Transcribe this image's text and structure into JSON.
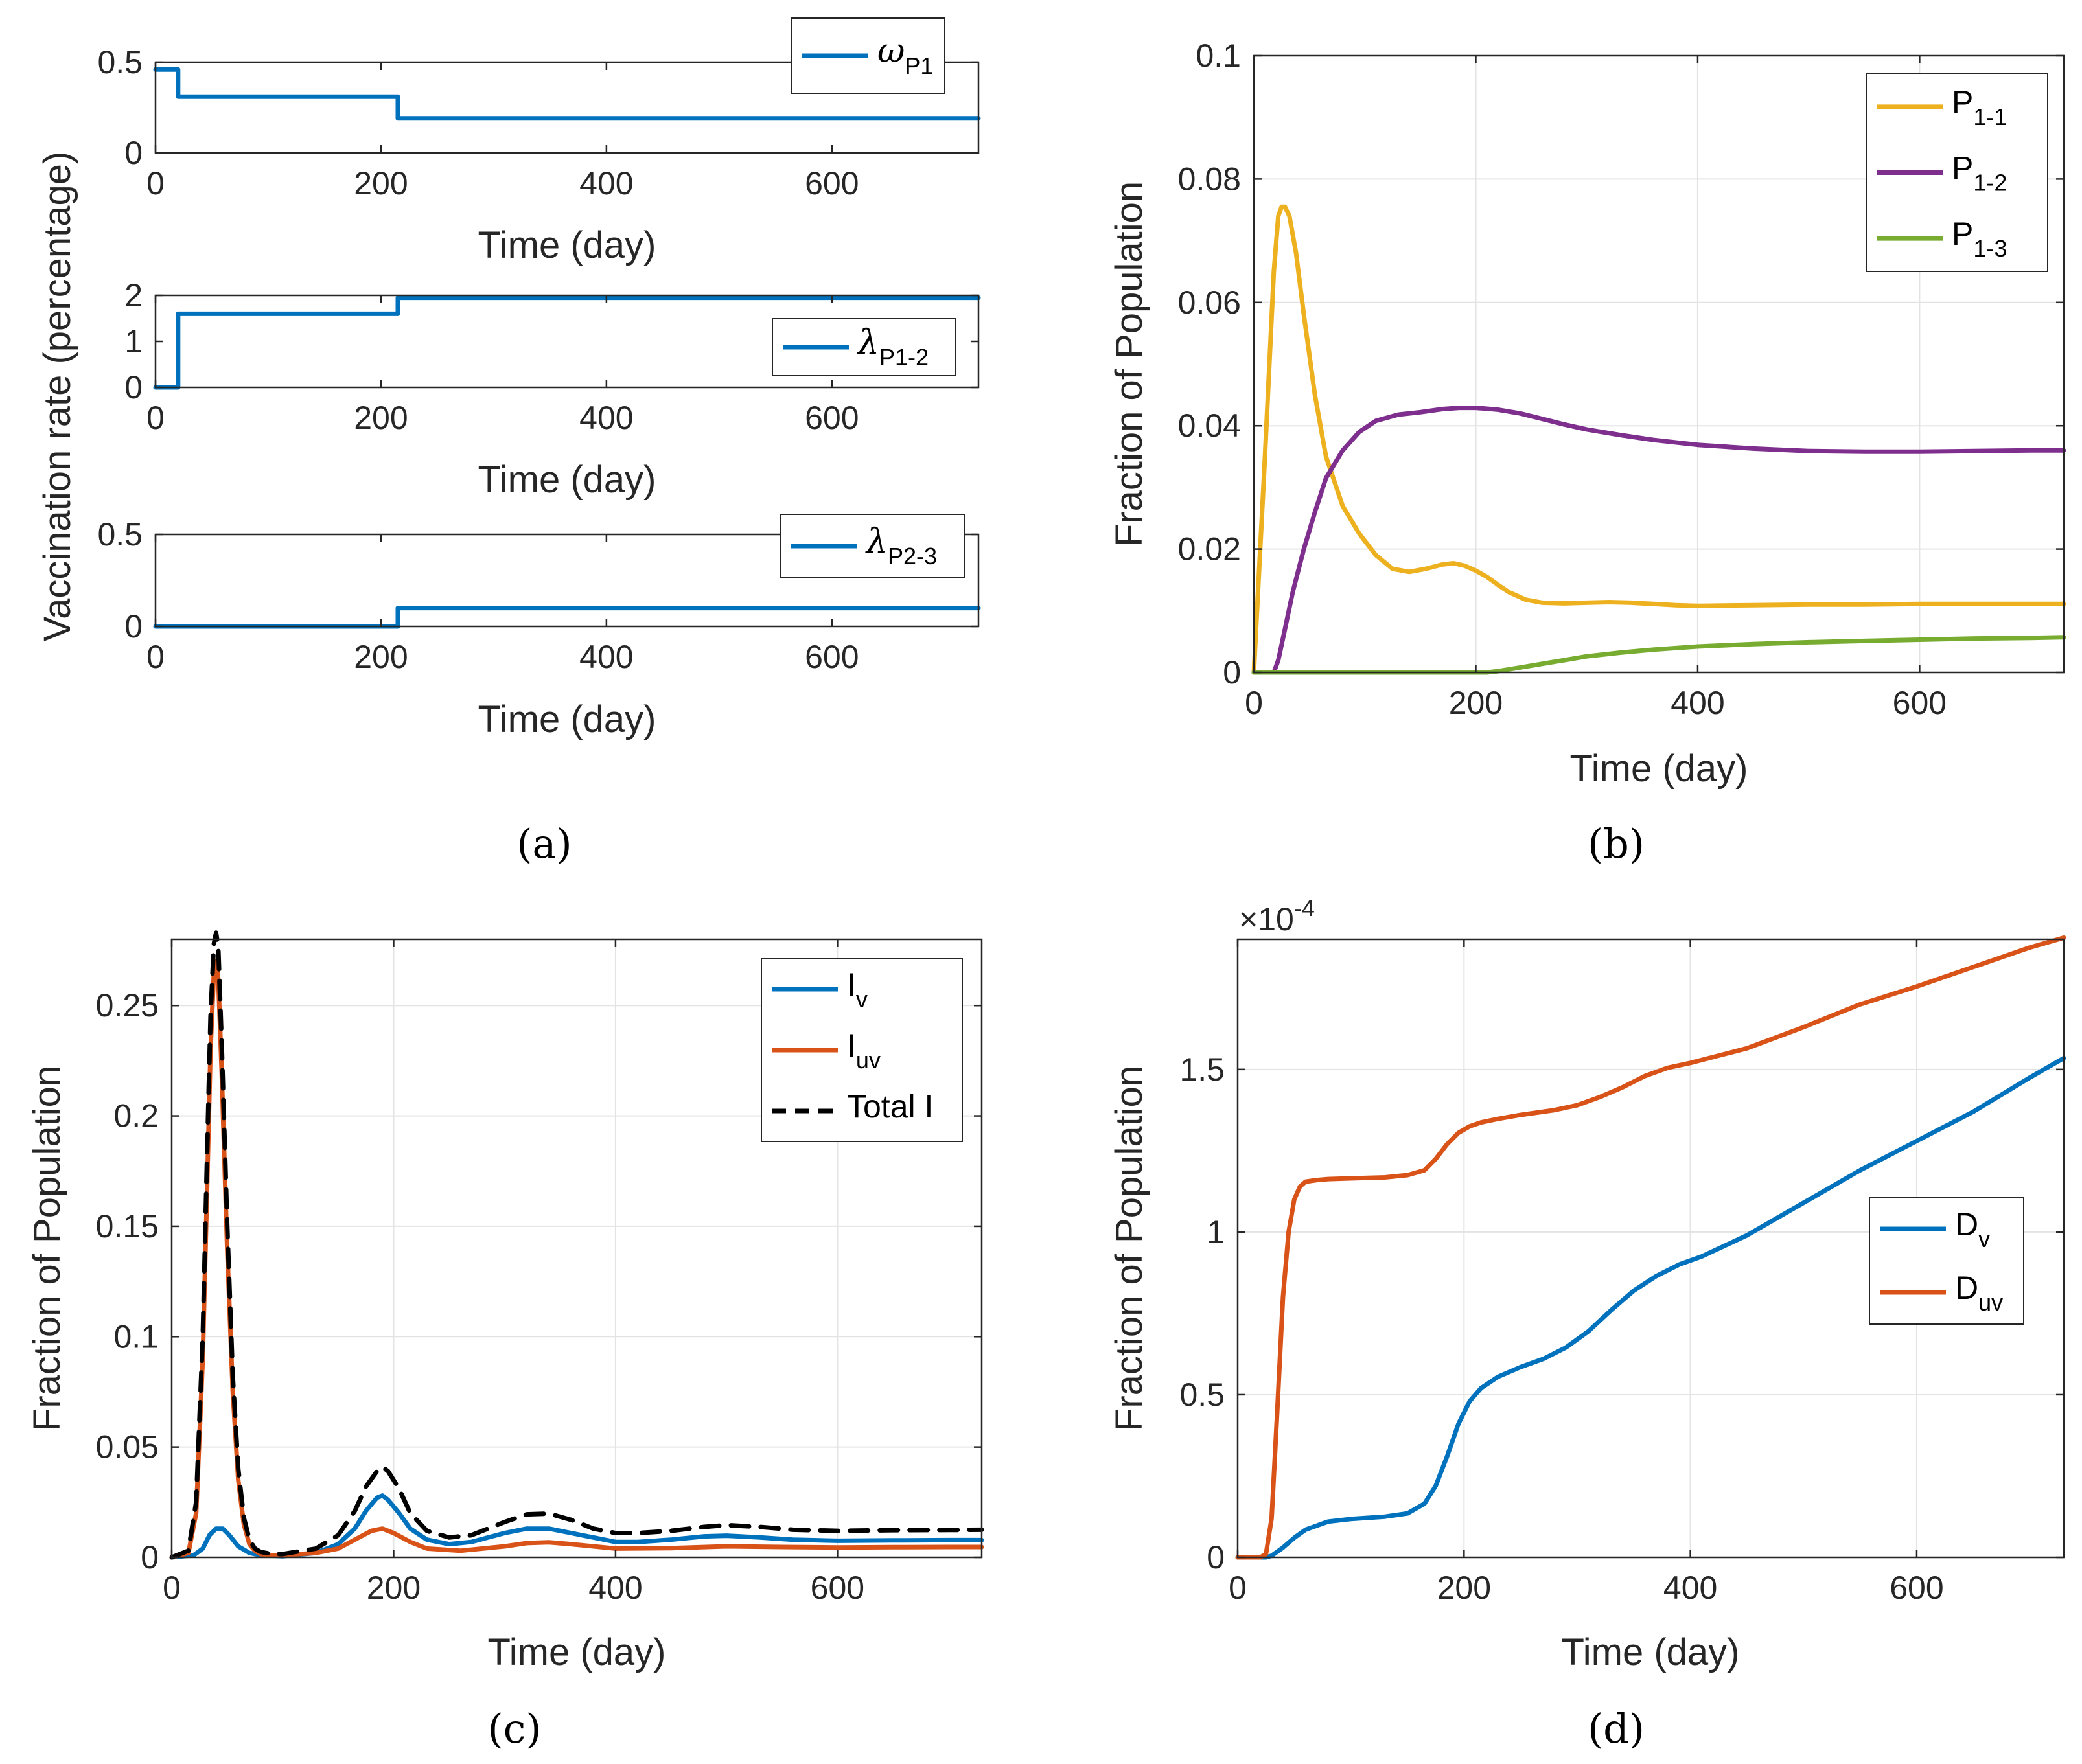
{
  "panel_labels": [
    "(a)",
    "(b)",
    "(c)",
    "(d)"
  ],
  "shared_ylabel": "Vaccination rate (percentage)",
  "colors": {
    "blue": "#0072BD",
    "orange": "#D95319",
    "yellow": "#EDB120",
    "purple": "#7E2F8E",
    "green": "#77AC30",
    "black": "#000000"
  },
  "chart_data": [
    {
      "type": "line",
      "panel": "a1",
      "xlabel": "Time (day)",
      "ylabel": "",
      "xlim": [
        0,
        730
      ],
      "ylim": [
        0,
        0.5
      ],
      "xticks": [
        0,
        200,
        400,
        600
      ],
      "yticks": [
        0,
        0.5
      ],
      "xtick_labels": [
        "0",
        "200",
        "400",
        "600"
      ],
      "ytick_labels": [
        "0",
        "0.5"
      ],
      "grid": false,
      "legend_position": "top-right",
      "series": [
        {
          "name": "ω",
          "sub": "P1",
          "symbol": true,
          "color": "#0072BD",
          "dash": "",
          "x": [
            0,
            20,
            20,
            215,
            215,
            730
          ],
          "y": [
            0.46,
            0.46,
            0.31,
            0.31,
            0.19,
            0.19
          ]
        }
      ]
    },
    {
      "type": "line",
      "panel": "a2",
      "xlabel": "Time (day)",
      "ylabel": "",
      "xlim": [
        0,
        730
      ],
      "ylim": [
        0,
        2
      ],
      "xticks": [
        0,
        200,
        400,
        600
      ],
      "yticks": [
        0,
        1,
        2
      ],
      "xtick_labels": [
        "0",
        "200",
        "400",
        "600"
      ],
      "ytick_labels": [
        "0",
        "1",
        "2"
      ],
      "grid": false,
      "legend_position": "bottom-right",
      "series": [
        {
          "name": "λ",
          "sub": "P1-2",
          "symbol": true,
          "color": "#0072BD",
          "dash": "",
          "x": [
            0,
            20,
            20,
            215,
            215,
            730
          ],
          "y": [
            0,
            0,
            1.6,
            1.6,
            1.95,
            1.95
          ]
        }
      ]
    },
    {
      "type": "line",
      "panel": "a3",
      "xlabel": "Time (day)",
      "ylabel": "",
      "xlim": [
        0,
        730
      ],
      "ylim": [
        0,
        0.5
      ],
      "xticks": [
        0,
        200,
        400,
        600
      ],
      "yticks": [
        0,
        0.5
      ],
      "xtick_labels": [
        "0",
        "200",
        "400",
        "600"
      ],
      "ytick_labels": [
        "0",
        "0.5"
      ],
      "grid": false,
      "legend_position": "top-right",
      "series": [
        {
          "name": "λ",
          "sub": "P2-3",
          "symbol": true,
          "color": "#0072BD",
          "dash": "",
          "x": [
            0,
            215,
            215,
            730
          ],
          "y": [
            0,
            0,
            0.1,
            0.1
          ]
        }
      ]
    },
    {
      "type": "line",
      "panel": "b",
      "xlabel": "Time (day)",
      "ylabel": "Fraction of Population",
      "xlim": [
        0,
        730
      ],
      "ylim": [
        0,
        0.1
      ],
      "xticks": [
        0,
        200,
        400,
        600
      ],
      "yticks": [
        0,
        0.02,
        0.04,
        0.06,
        0.08,
        0.1
      ],
      "xtick_labels": [
        "0",
        "200",
        "400",
        "600"
      ],
      "ytick_labels": [
        "0",
        "0.02",
        "0.04",
        "0.06",
        "0.08",
        "0.1"
      ],
      "grid": true,
      "legend_position": "top-right",
      "series": [
        {
          "name": "P",
          "sub": "1-1",
          "symbol": false,
          "color": "#EDB120",
          "dash": "",
          "x": [
            0,
            10,
            18,
            22,
            25,
            28,
            32,
            38,
            45,
            55,
            65,
            80,
            95,
            110,
            125,
            140,
            155,
            170,
            180,
            190,
            200,
            210,
            220,
            230,
            245,
            260,
            280,
            300,
            320,
            340,
            360,
            380,
            400,
            450,
            500,
            550,
            600,
            650,
            700,
            730
          ],
          "y": [
            0,
            0.035,
            0.065,
            0.074,
            0.0755,
            0.0755,
            0.074,
            0.068,
            0.058,
            0.045,
            0.035,
            0.027,
            0.0225,
            0.019,
            0.0168,
            0.0163,
            0.0168,
            0.0175,
            0.0177,
            0.0173,
            0.0165,
            0.0155,
            0.0142,
            0.013,
            0.0118,
            0.0113,
            0.0112,
            0.0113,
            0.0114,
            0.0113,
            0.0111,
            0.0109,
            0.0108,
            0.0109,
            0.011,
            0.011,
            0.0111,
            0.0111,
            0.0111,
            0.0111
          ]
        },
        {
          "name": "P",
          "sub": "1-2",
          "symbol": false,
          "color": "#7E2F8E",
          "dash": "",
          "x": [
            0,
            18,
            22,
            28,
            35,
            45,
            55,
            65,
            80,
            95,
            110,
            130,
            150,
            170,
            185,
            200,
            220,
            240,
            260,
            280,
            300,
            330,
            360,
            400,
            450,
            500,
            550,
            600,
            650,
            700,
            730
          ],
          "y": [
            0,
            0,
            0.002,
            0.007,
            0.013,
            0.02,
            0.026,
            0.0315,
            0.036,
            0.039,
            0.0408,
            0.0418,
            0.0422,
            0.0427,
            0.0429,
            0.0429,
            0.0426,
            0.042,
            0.0411,
            0.0402,
            0.0394,
            0.0385,
            0.0377,
            0.0369,
            0.0363,
            0.0359,
            0.0358,
            0.0358,
            0.0359,
            0.036,
            0.036
          ]
        },
        {
          "name": "P",
          "sub": "1-3",
          "symbol": false,
          "color": "#77AC30",
          "dash": "",
          "x": [
            0,
            210,
            220,
            240,
            260,
            280,
            300,
            330,
            360,
            400,
            450,
            500,
            550,
            600,
            650,
            700,
            730
          ],
          "y": [
            0,
            0,
            0.0002,
            0.0008,
            0.0014,
            0.002,
            0.0026,
            0.0032,
            0.0037,
            0.0042,
            0.0046,
            0.0049,
            0.0051,
            0.0053,
            0.0055,
            0.0056,
            0.0057
          ]
        }
      ]
    },
    {
      "type": "line",
      "panel": "c",
      "xlabel": "Time (day)",
      "ylabel": "Fraction of Population",
      "xlim": [
        0,
        730
      ],
      "ylim": [
        0,
        0.28
      ],
      "xticks": [
        0,
        200,
        400,
        600
      ],
      "yticks": [
        0,
        0.05,
        0.1,
        0.15,
        0.2,
        0.25
      ],
      "xtick_labels": [
        "0",
        "200",
        "400",
        "600"
      ],
      "ytick_labels": [
        "0",
        "0.05",
        "0.1",
        "0.15",
        "0.2",
        "0.25"
      ],
      "grid": true,
      "legend_position": "top-right",
      "series": [
        {
          "name": "I",
          "sub": "v",
          "symbol": false,
          "color": "#0072BD",
          "dash": "",
          "x": [
            0,
            20,
            28,
            34,
            40,
            46,
            52,
            60,
            70,
            80,
            100,
            130,
            150,
            165,
            175,
            185,
            190,
            195,
            205,
            215,
            230,
            250,
            270,
            300,
            320,
            340,
            360,
            380,
            400,
            420,
            450,
            480,
            500,
            530,
            560,
            600,
            650,
            700,
            730
          ],
          "y": [
            0,
            0.001,
            0.004,
            0.01,
            0.013,
            0.013,
            0.01,
            0.005,
            0.002,
            0.001,
            0.0005,
            0.002,
            0.006,
            0.013,
            0.021,
            0.027,
            0.028,
            0.026,
            0.02,
            0.013,
            0.008,
            0.006,
            0.007,
            0.011,
            0.013,
            0.013,
            0.011,
            0.009,
            0.007,
            0.007,
            0.008,
            0.0095,
            0.0098,
            0.009,
            0.008,
            0.0075,
            0.0077,
            0.0078,
            0.0078
          ]
        },
        {
          "name": "I",
          "sub": "uv",
          "symbol": false,
          "color": "#D95319",
          "dash": "",
          "x": [
            0,
            15,
            22,
            28,
            32,
            35,
            38,
            40,
            42,
            45,
            50,
            55,
            60,
            65,
            70,
            75,
            80,
            90,
            100,
            130,
            150,
            165,
            180,
            190,
            200,
            215,
            230,
            260,
            300,
            320,
            340,
            360,
            400,
            450,
            500,
            550,
            600,
            650,
            700,
            730
          ],
          "y": [
            0,
            0.002,
            0.02,
            0.09,
            0.17,
            0.23,
            0.265,
            0.27,
            0.262,
            0.22,
            0.14,
            0.075,
            0.035,
            0.015,
            0.006,
            0.003,
            0.0015,
            0.001,
            0.001,
            0.002,
            0.004,
            0.008,
            0.012,
            0.013,
            0.011,
            0.007,
            0.004,
            0.003,
            0.005,
            0.0065,
            0.0068,
            0.006,
            0.004,
            0.0042,
            0.005,
            0.0047,
            0.0045,
            0.0046,
            0.0047,
            0.0047
          ]
        },
        {
          "name": "Total I",
          "sub": "",
          "symbol": false,
          "color": "#000000",
          "dash": "28 18",
          "x": [
            0,
            15,
            22,
            28,
            32,
            35,
            38,
            40,
            42,
            45,
            50,
            55,
            60,
            65,
            70,
            75,
            80,
            90,
            100,
            130,
            150,
            165,
            175,
            185,
            190,
            195,
            205,
            215,
            230,
            250,
            270,
            300,
            320,
            340,
            360,
            380,
            400,
            420,
            450,
            480,
            500,
            530,
            560,
            600,
            650,
            700,
            730
          ],
          "y": [
            0,
            0.003,
            0.025,
            0.1,
            0.185,
            0.245,
            0.278,
            0.283,
            0.276,
            0.233,
            0.151,
            0.082,
            0.04,
            0.018,
            0.008,
            0.004,
            0.0025,
            0.0015,
            0.0015,
            0.004,
            0.01,
            0.021,
            0.032,
            0.039,
            0.041,
            0.039,
            0.031,
            0.02,
            0.012,
            0.009,
            0.01,
            0.016,
            0.0195,
            0.0198,
            0.017,
            0.013,
            0.011,
            0.011,
            0.012,
            0.0138,
            0.0146,
            0.0138,
            0.0125,
            0.012,
            0.0123,
            0.0124,
            0.0125
          ]
        }
      ]
    },
    {
      "type": "line",
      "panel": "d",
      "xlabel": "Time (day)",
      "ylabel": "Fraction of Population",
      "xlim": [
        0,
        730
      ],
      "ylim": [
        0,
        0.00019
      ],
      "scale_label": "×10",
      "scale_exponent": "-4",
      "xticks": [
        0,
        200,
        400,
        600
      ],
      "yticks": [
        0,
        5e-05,
        0.0001,
        0.00015
      ],
      "xtick_labels": [
        "0",
        "200",
        "400",
        "600"
      ],
      "ytick_labels": [
        "0",
        "0.5",
        "1",
        "1.5"
      ],
      "grid": true,
      "legend_position": "center-right",
      "series": [
        {
          "name": "D",
          "sub": "v",
          "symbol": false,
          "color": "#0072BD",
          "dash": "",
          "x": [
            0,
            25,
            30,
            40,
            50,
            60,
            80,
            100,
            130,
            150,
            165,
            175,
            185,
            195,
            205,
            215,
            230,
            250,
            270,
            290,
            310,
            330,
            350,
            370,
            390,
            410,
            450,
            500,
            550,
            600,
            650,
            700,
            730
          ],
          "y": [
            0,
            0,
            5e-07,
            3e-06,
            6e-06,
            8.5e-06,
            1.1e-05,
            1.18e-05,
            1.25e-05,
            1.35e-05,
            1.65e-05,
            2.2e-05,
            3.1e-05,
            4.1e-05,
            4.8e-05,
            5.2e-05,
            5.55e-05,
            5.85e-05,
            6.1e-05,
            6.45e-05,
            6.95e-05,
            7.6e-05,
            8.2e-05,
            8.65e-05,
            9e-05,
            9.25e-05,
            9.9e-05,
            0.000109,
            0.000119,
            0.000128,
            0.000137,
            0.0001475,
            0.0001535
          ]
        },
        {
          "name": "D",
          "sub": "uv",
          "symbol": false,
          "color": "#D95319",
          "dash": "",
          "x": [
            0,
            20,
            25,
            30,
            35,
            40,
            45,
            50,
            55,
            60,
            70,
            80,
            100,
            130,
            150,
            165,
            175,
            185,
            195,
            205,
            215,
            230,
            250,
            280,
            300,
            320,
            340,
            360,
            380,
            400,
            450,
            500,
            550,
            600,
            650,
            700,
            730
          ],
          "y": [
            0,
            0,
            1e-06,
            1.2e-05,
            4.5e-05,
            8e-05,
            0.0001,
            0.00011,
            0.000114,
            0.0001155,
            0.000116,
            0.0001163,
            0.0001165,
            0.0001168,
            0.0001175,
            0.000119,
            0.0001225,
            0.000127,
            0.0001305,
            0.0001325,
            0.0001337,
            0.0001348,
            0.000136,
            0.0001375,
            0.000139,
            0.0001415,
            0.0001445,
            0.000148,
            0.0001505,
            0.000152,
            0.0001565,
            0.000163,
            0.00017,
            0.0001755,
            0.0001815,
            0.0001875,
            0.0001905
          ]
        }
      ]
    }
  ]
}
